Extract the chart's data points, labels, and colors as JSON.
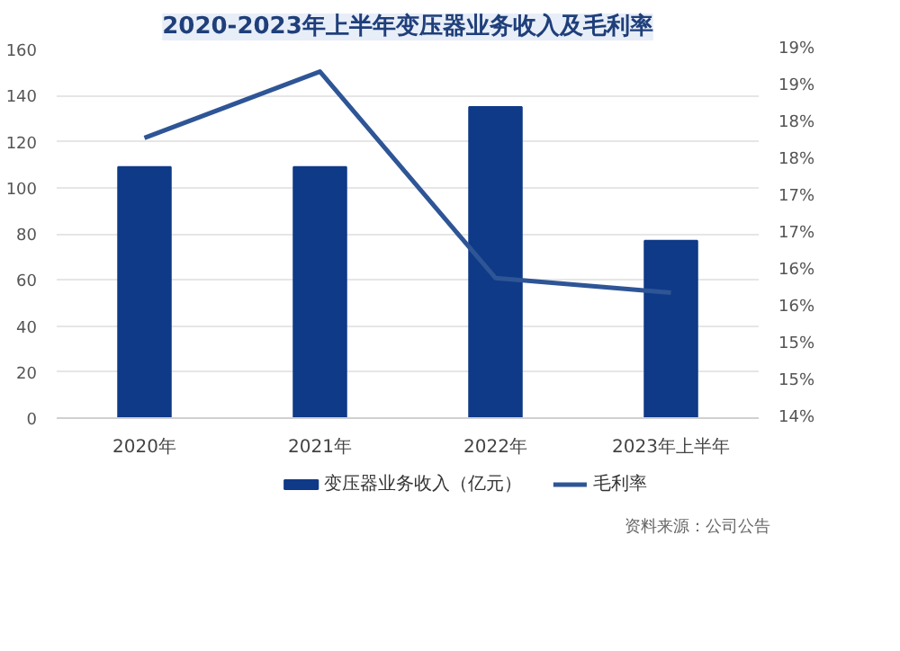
{
  "chart_data": {
    "type": "bar",
    "title": "2020-2023年上半年变压器业务收入及毛利率",
    "categories": [
      "2020年",
      "2021年",
      "2022年",
      "2023年上半年"
    ],
    "series": [
      {
        "name": "变压器业务收入（亿元）",
        "color": "#0f3a87",
        "values": [
          109,
          109,
          135,
          77
        ]
      },
      {
        "name": "毛利率",
        "type": "line",
        "axis": "y2",
        "color": "#2e5596",
        "values": [
          17.8,
          18.7,
          15.9,
          15.7
        ]
      }
    ],
    "ylim": [
      0,
      160
    ],
    "yticks": [
      0,
      20,
      40,
      60,
      80,
      100,
      120,
      140,
      160
    ],
    "y2lim": [
      14,
      19
    ],
    "y2ticks": [
      {
        "value": 14,
        "label": "14%"
      },
      {
        "value": 14.5,
        "label": "15%"
      },
      {
        "value": 15,
        "label": "15%"
      },
      {
        "value": 15.5,
        "label": "16%"
      },
      {
        "value": 16,
        "label": "16%"
      },
      {
        "value": 16.5,
        "label": "17%"
      },
      {
        "value": 17,
        "label": "17%"
      },
      {
        "value": 17.5,
        "label": "18%"
      },
      {
        "value": 18,
        "label": "18%"
      },
      {
        "value": 18.5,
        "label": "19%"
      },
      {
        "value": 19,
        "label": "19%"
      }
    ],
    "grid": "y",
    "legend": "bottom",
    "marker": "none",
    "line_style": "solid",
    "annotations": [
      "资料来源：公司公告"
    ]
  }
}
